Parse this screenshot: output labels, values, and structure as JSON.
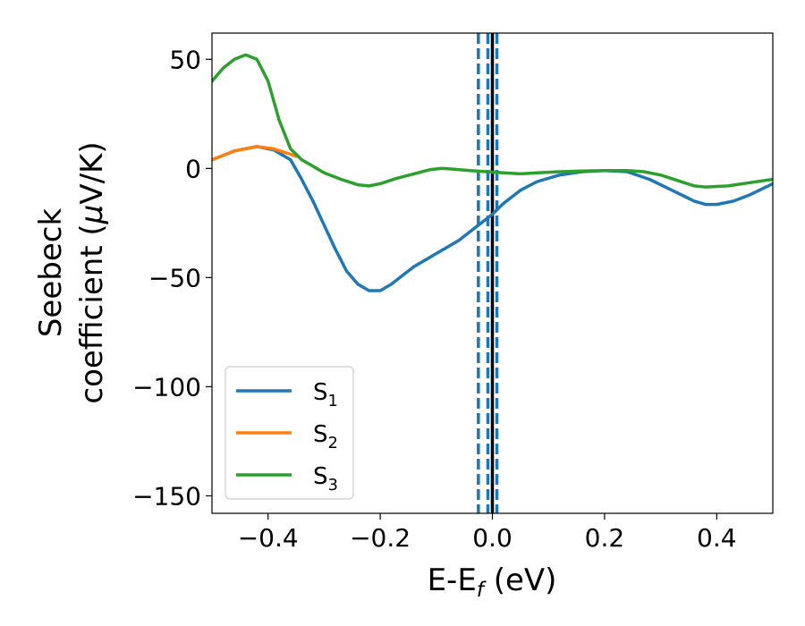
{
  "chart_data": {
    "type": "line",
    "xlabel": "E-E",
    "xlabel_sub": "f",
    "xlabel_unit": " (eV)",
    "ylabel_line1": "Seebeck",
    "ylabel_line2": "coefficient  (",
    "ylabel_mu": "μ",
    "ylabel_unit": "V/K)",
    "xlim": [
      -0.5,
      0.5
    ],
    "ylim": [
      -158,
      62
    ],
    "xticks": [
      -0.4,
      -0.2,
      0.0,
      0.2,
      0.4
    ],
    "xtick_labels": [
      "−0.4",
      "−0.2",
      "0.0",
      "0.2",
      "0.4"
    ],
    "yticks": [
      50,
      0,
      -50,
      -100,
      -150
    ],
    "ytick_labels": [
      "50",
      "0",
      "−50",
      "−100",
      "−150"
    ],
    "grid": false,
    "legend_position": "lower-left",
    "vlines": [
      {
        "x": -0.025,
        "style": "dashed",
        "color": "#1f77b4"
      },
      {
        "x": -0.008,
        "style": "dashed",
        "color": "#1f77b4"
      },
      {
        "x": 0.008,
        "style": "dashed",
        "color": "#1f77b4"
      },
      {
        "x": 0.0,
        "style": "solid",
        "color": "#000000"
      }
    ],
    "series": [
      {
        "name": "S",
        "sub": "1",
        "color": "#1f77b4",
        "points": [
          [
            -0.5,
            4
          ],
          [
            -0.46,
            8
          ],
          [
            -0.42,
            10
          ],
          [
            -0.39,
            8.5
          ],
          [
            -0.36,
            4
          ],
          [
            -0.34,
            -5
          ],
          [
            -0.32,
            -15
          ],
          [
            -0.3,
            -26
          ],
          [
            -0.28,
            -37
          ],
          [
            -0.26,
            -47
          ],
          [
            -0.24,
            -53
          ],
          [
            -0.22,
            -56
          ],
          [
            -0.2,
            -56
          ],
          [
            -0.18,
            -53
          ],
          [
            -0.16,
            -49
          ],
          [
            -0.14,
            -45
          ],
          [
            -0.12,
            -42
          ],
          [
            -0.1,
            -39
          ],
          [
            -0.08,
            -36
          ],
          [
            -0.06,
            -33
          ],
          [
            -0.04,
            -29
          ],
          [
            -0.02,
            -25
          ],
          [
            0.0,
            -21
          ],
          [
            0.02,
            -16
          ],
          [
            0.05,
            -10
          ],
          [
            0.08,
            -6
          ],
          [
            0.12,
            -3
          ],
          [
            0.16,
            -1.5
          ],
          [
            0.2,
            -1
          ],
          [
            0.24,
            -1.5
          ],
          [
            0.28,
            -5
          ],
          [
            0.32,
            -10
          ],
          [
            0.36,
            -15
          ],
          [
            0.38,
            -16.5
          ],
          [
            0.4,
            -16.5
          ],
          [
            0.43,
            -15
          ],
          [
            0.46,
            -12
          ],
          [
            0.5,
            -7
          ]
        ]
      },
      {
        "name": "S",
        "sub": "2",
        "color": "#ff7f0e",
        "points": [
          [
            -0.5,
            4
          ],
          [
            -0.46,
            8
          ],
          [
            -0.42,
            10
          ],
          [
            -0.39,
            9
          ],
          [
            -0.36,
            6.5
          ],
          [
            -0.35,
            5.5
          ]
        ]
      },
      {
        "name": "S",
        "sub": "3",
        "color": "#2ca02c",
        "points": [
          [
            -0.5,
            40
          ],
          [
            -0.48,
            46
          ],
          [
            -0.46,
            50
          ],
          [
            -0.44,
            52
          ],
          [
            -0.42,
            50
          ],
          [
            -0.4,
            40
          ],
          [
            -0.38,
            22
          ],
          [
            -0.36,
            9
          ],
          [
            -0.34,
            4
          ],
          [
            -0.32,
            1
          ],
          [
            -0.3,
            -2
          ],
          [
            -0.27,
            -5
          ],
          [
            -0.24,
            -7.5
          ],
          [
            -0.22,
            -8
          ],
          [
            -0.2,
            -7
          ],
          [
            -0.17,
            -4.5
          ],
          [
            -0.14,
            -2.5
          ],
          [
            -0.11,
            -0.5
          ],
          [
            -0.09,
            0
          ],
          [
            -0.07,
            -0.3
          ],
          [
            -0.04,
            -1
          ],
          [
            -0.01,
            -1.5
          ],
          [
            0.02,
            -2
          ],
          [
            0.05,
            -2.5
          ],
          [
            0.08,
            -2
          ],
          [
            0.12,
            -1.5
          ],
          [
            0.16,
            -1.2
          ],
          [
            0.2,
            -1
          ],
          [
            0.24,
            -1
          ],
          [
            0.27,
            -1.5
          ],
          [
            0.3,
            -3
          ],
          [
            0.33,
            -5.5
          ],
          [
            0.36,
            -8
          ],
          [
            0.38,
            -8.5
          ],
          [
            0.42,
            -8
          ],
          [
            0.46,
            -6.5
          ],
          [
            0.5,
            -5
          ]
        ]
      }
    ]
  }
}
